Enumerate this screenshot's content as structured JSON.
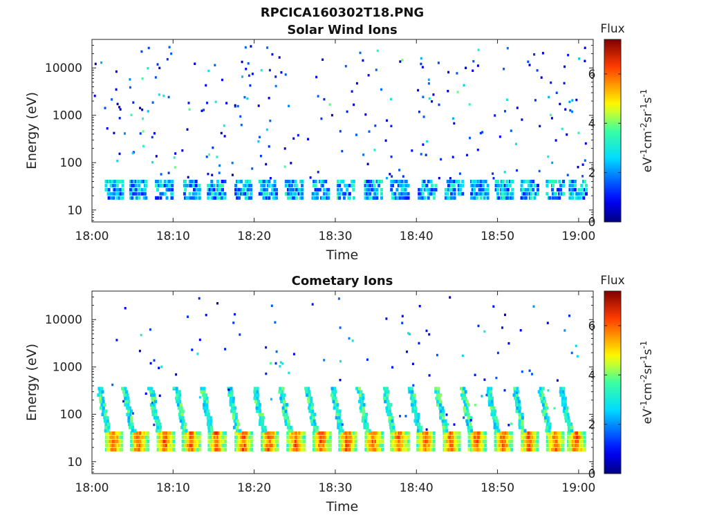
{
  "figure_title": "RPCICA160302T18.PNG",
  "chart_data": [
    {
      "type": "heatmap",
      "title": "Solar Wind Ions",
      "xlabel": "Time",
      "ylabel": "Energy (eV)",
      "x_ticks": [
        "18:00",
        "18:10",
        "18:20",
        "18:30",
        "18:40",
        "18:50",
        "19:00"
      ],
      "y_ticks": [
        "10",
        "100",
        "1000",
        "10000"
      ],
      "y_scale": "log",
      "ylim": [
        5.6,
        40000
      ],
      "colorbar": {
        "title": "Flux",
        "label": "eV-1cm-2sr-1s-1",
        "ticks": [
          "0",
          "2",
          "4",
          "6"
        ],
        "range": [
          0,
          7.4
        ]
      },
      "pattern": "Sparse solar wind ion bursts near 20-40 eV repeating about every 3 min; scattered single-pixel counts at higher energies",
      "band_energy_eV": [
        18,
        40
      ],
      "band_centers_min": [
        2.6,
        5.6,
        8.8,
        12.2,
        15.2,
        18.5,
        21.6,
        24.8,
        28.0,
        31.2,
        34.6,
        37.8,
        41.2,
        44.5,
        47.6,
        50.7,
        53.8,
        57.0,
        59.8
      ],
      "band_intensity": 3.0
    },
    {
      "type": "heatmap",
      "title": "Cometary Ions",
      "xlabel": "Time",
      "ylabel": "Energy (eV)",
      "x_ticks": [
        "18:00",
        "18:10",
        "18:20",
        "18:30",
        "18:40",
        "18:50",
        "19:00"
      ],
      "y_ticks": [
        "10",
        "100",
        "1000",
        "10000"
      ],
      "y_scale": "log",
      "ylim": [
        5.6,
        40000
      ],
      "colorbar": {
        "title": "Flux",
        "label": "eV-1cm-2sr-1s-1",
        "ticks": [
          "0",
          "2",
          "4",
          "6"
        ],
        "range": [
          0,
          7.4
        ]
      },
      "pattern": "Intense cometary ion bursts near 20-40 eV every ~3.2 min with tilted tails rising to ~300 eV",
      "band_energy_eV": [
        18,
        40
      ],
      "band_centers_min": [
        2.6,
        5.7,
        8.9,
        12.1,
        15.3,
        18.6,
        21.8,
        25.0,
        28.2,
        31.4,
        34.6,
        37.8,
        41.0,
        44.2,
        47.4,
        50.6,
        53.8,
        57.0,
        59.6
      ],
      "band_intensity": 6.2
    }
  ]
}
